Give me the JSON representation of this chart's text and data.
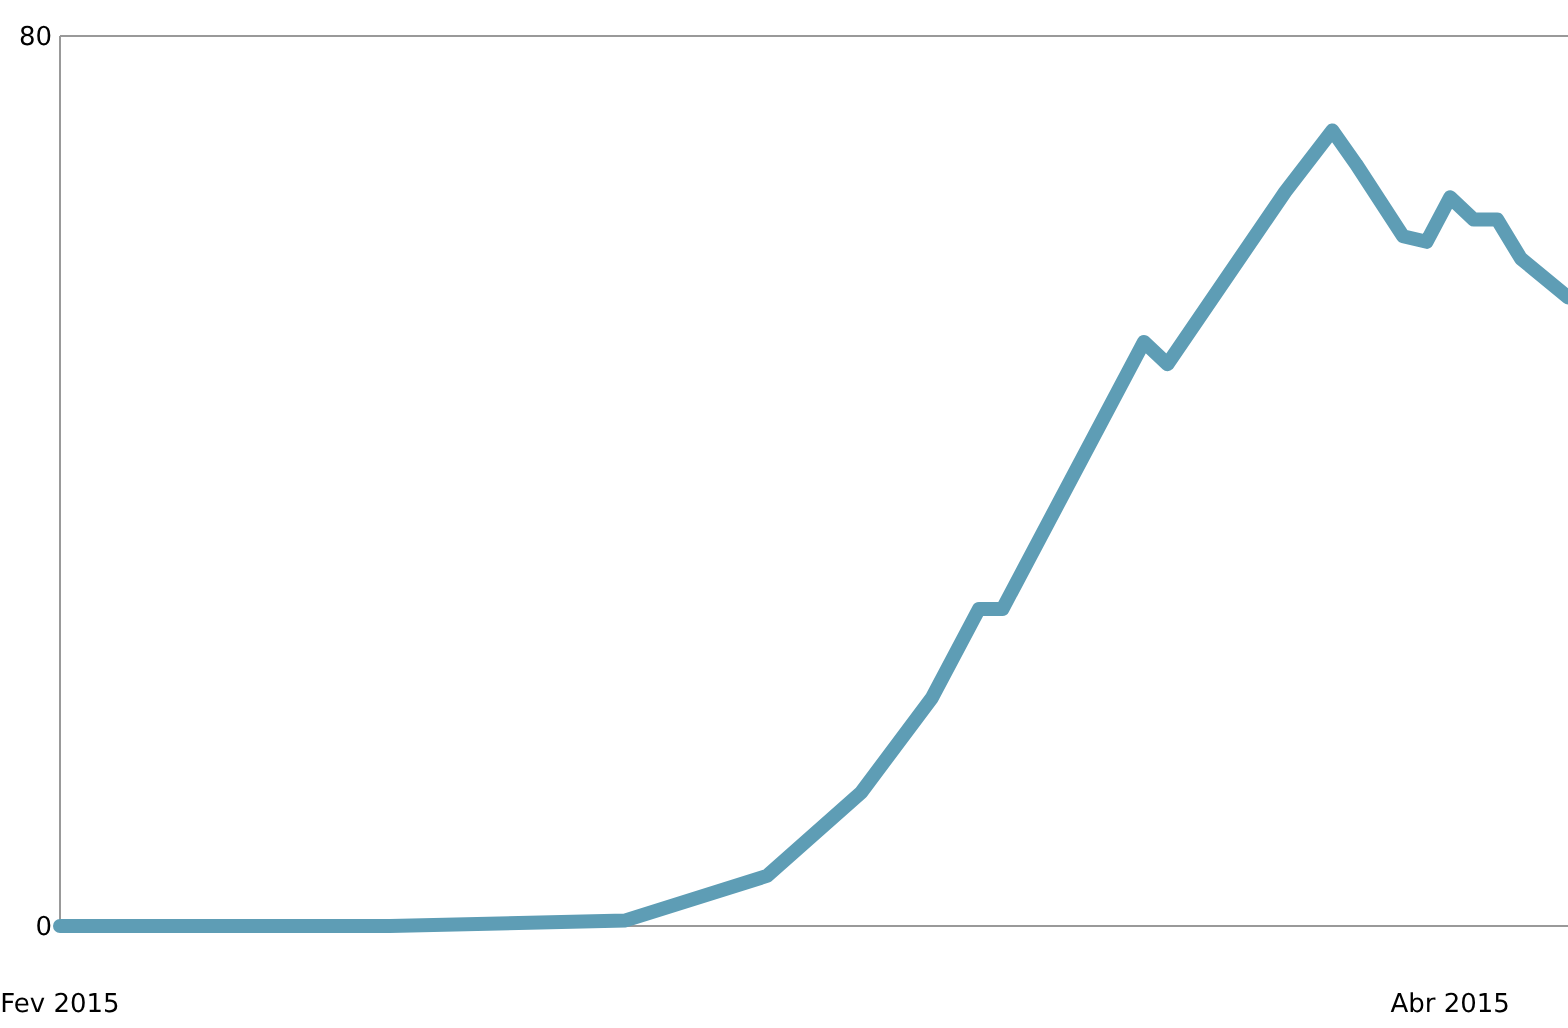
{
  "chart_data": {
    "type": "line",
    "x": [
      "2015-02-01",
      "2015-02-15",
      "2015-02-25",
      "2015-03-03",
      "2015-03-07",
      "2015-03-10",
      "2015-03-12",
      "2015-03-13",
      "2015-03-19",
      "2015-03-20",
      "2015-03-25",
      "2015-03-27",
      "2015-03-28",
      "2015-03-30",
      "2015-03-31",
      "2015-04-01",
      "2015-04-02",
      "2015-04-03",
      "2015-04-04",
      "2015-04-06"
    ],
    "series": [
      {
        "color": "#5e9db5",
        "values": [
          0,
          0,
          0.5,
          4.5,
          12,
          20.5,
          28.5,
          28.5,
          52.5,
          50.5,
          66,
          71.5,
          68.5,
          62,
          61.5,
          65.5,
          63.5,
          63.5,
          60,
          56.5
        ]
      }
    ],
    "xlim": [
      "2015-02-01",
      "2015-04-06"
    ],
    "xticks": [
      {
        "value": "2015-02-01",
        "label": "Fev 2015"
      },
      {
        "value": "2015-04-01",
        "label": "Abr 2015"
      }
    ],
    "ylim": [
      0,
      80
    ],
    "yticks": [
      0,
      80
    ],
    "marker": "none",
    "line_style": "solid"
  }
}
